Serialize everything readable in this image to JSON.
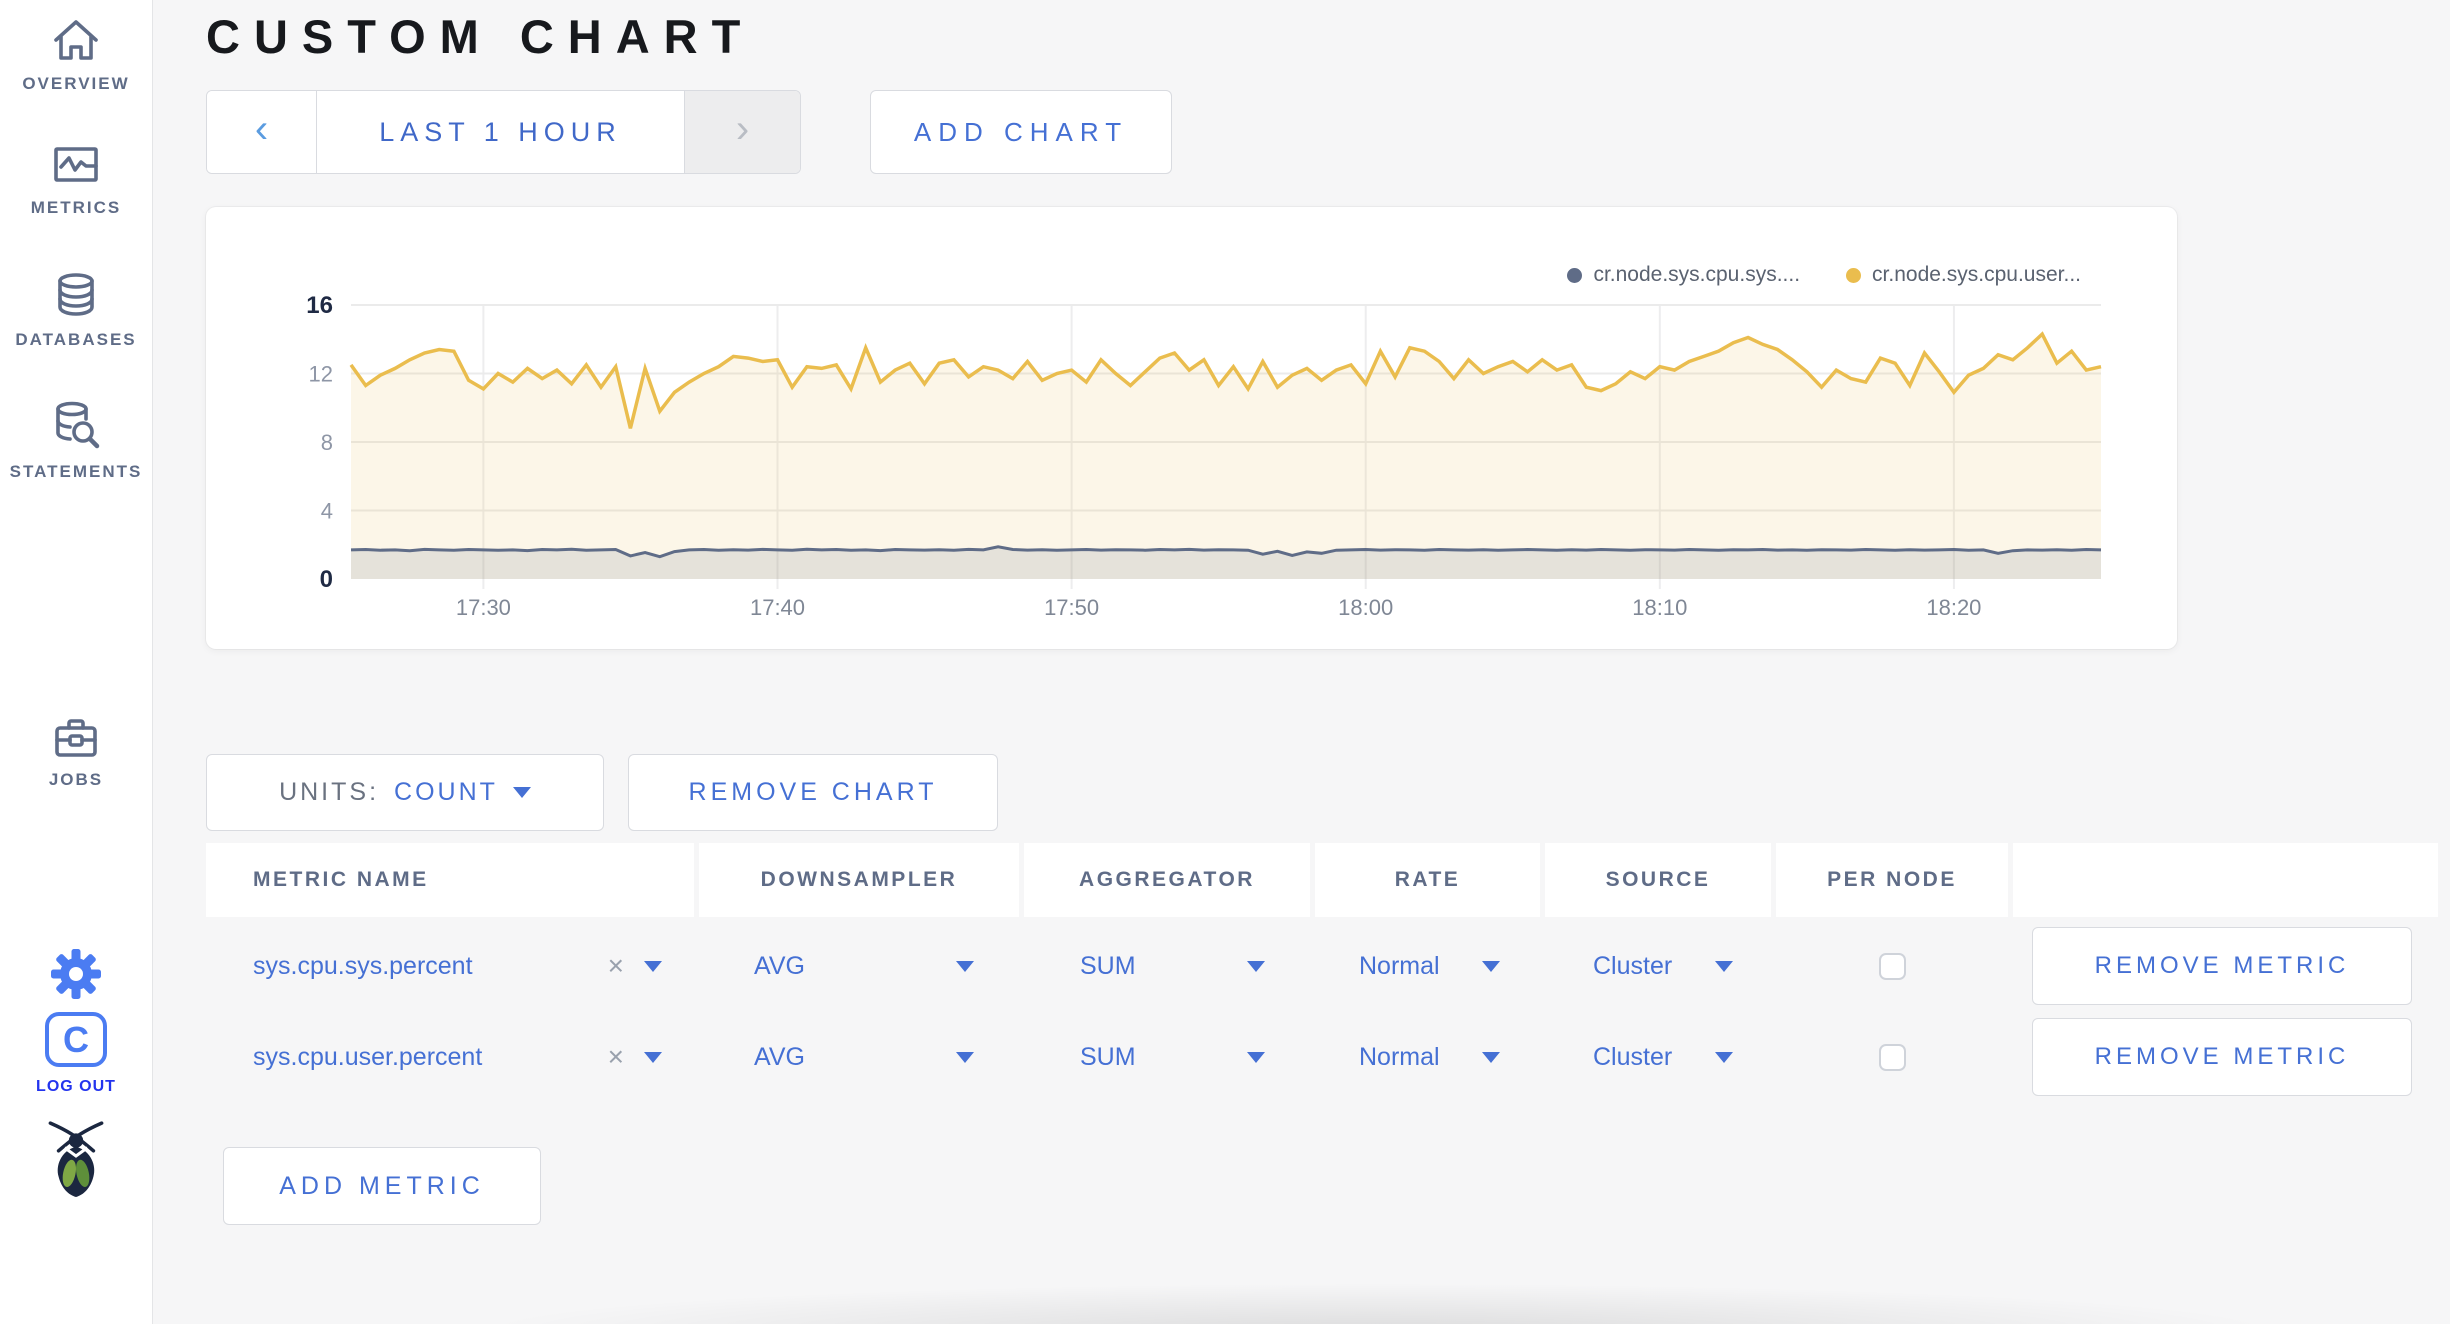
{
  "header": {
    "title": "CUSTOM CHART"
  },
  "sidebar": {
    "items": [
      {
        "label": "OVERVIEW"
      },
      {
        "label": "METRICS"
      },
      {
        "label": "DATABASES"
      },
      {
        "label": "STATEMENTS"
      },
      {
        "label": "JOBS"
      }
    ],
    "logo_letter": "C",
    "logout_label": "LOG OUT"
  },
  "time_selector": {
    "prev_glyph": "‹",
    "label": "LAST 1 HOUR",
    "next_glyph": "›"
  },
  "buttons": {
    "add_chart": "ADD CHART",
    "remove_chart": "REMOVE CHART",
    "add_metric": "ADD METRIC"
  },
  "units": {
    "label": "UNITS:",
    "value": "COUNT"
  },
  "colors": {
    "accent_blue": "#4570d4",
    "sidebar_gray": "#5f6c87",
    "logo_blue": "#4b7cf2",
    "logout_blue": "#2334ee",
    "series_yellow": "#eabd4e",
    "series_gray": "#5f6c87"
  },
  "table": {
    "headers": [
      "METRIC NAME",
      "DOWNSAMPLER",
      "AGGREGATOR",
      "RATE",
      "SOURCE",
      "PER NODE",
      ""
    ],
    "clear_glyph": "×",
    "rows": [
      {
        "metric_name": "sys.cpu.sys.percent",
        "downsampler": "AVG",
        "aggregator": "SUM",
        "rate": "Normal",
        "source": "Cluster",
        "per_node_checked": false,
        "remove_label": "REMOVE METRIC"
      },
      {
        "metric_name": "sys.cpu.user.percent",
        "downsampler": "AVG",
        "aggregator": "SUM",
        "rate": "Normal",
        "source": "Cluster",
        "per_node_checked": false,
        "remove_label": "REMOVE METRIC"
      }
    ]
  },
  "chart_data": {
    "type": "line",
    "title": "",
    "xlabel": "",
    "ylabel": "",
    "ylim": [
      0,
      16
    ],
    "yticks": [
      0,
      4,
      8,
      12,
      16
    ],
    "grid": true,
    "legend_position": "top-right",
    "xticklabels": [
      "17:30",
      "17:40",
      "17:50",
      "18:00",
      "18:10",
      "18:20"
    ],
    "xtick_indices": [
      9,
      29,
      49,
      69,
      89,
      109
    ],
    "series": [
      {
        "name": "cr.node.sys.cpu.sys....",
        "color": "#5f6c87",
        "fill": "rgba(95,108,135,0.14)",
        "values": [
          1.7,
          1.72,
          1.68,
          1.7,
          1.65,
          1.73,
          1.7,
          1.68,
          1.72,
          1.7,
          1.68,
          1.7,
          1.66,
          1.72,
          1.7,
          1.74,
          1.68,
          1.7,
          1.72,
          1.35,
          1.55,
          1.3,
          1.6,
          1.7,
          1.72,
          1.68,
          1.71,
          1.69,
          1.73,
          1.7,
          1.68,
          1.74,
          1.7,
          1.72,
          1.68,
          1.7,
          1.66,
          1.72,
          1.7,
          1.69,
          1.71,
          1.68,
          1.73,
          1.7,
          1.88,
          1.72,
          1.69,
          1.71,
          1.68,
          1.7,
          1.72,
          1.69,
          1.71,
          1.7,
          1.68,
          1.72,
          1.7,
          1.73,
          1.69,
          1.71,
          1.7,
          1.68,
          1.45,
          1.62,
          1.38,
          1.58,
          1.5,
          1.68,
          1.7,
          1.72,
          1.69,
          1.71,
          1.7,
          1.68,
          1.72,
          1.7,
          1.69,
          1.71,
          1.68,
          1.7,
          1.72,
          1.7,
          1.68,
          1.71,
          1.69,
          1.72,
          1.7,
          1.68,
          1.71,
          1.7,
          1.69,
          1.72,
          1.7,
          1.68,
          1.71,
          1.7,
          1.72,
          1.69,
          1.7,
          1.68,
          1.71,
          1.7,
          1.69,
          1.72,
          1.7,
          1.68,
          1.71,
          1.69,
          1.7,
          1.72,
          1.68,
          1.7,
          1.5,
          1.65,
          1.7,
          1.69,
          1.71,
          1.68,
          1.72,
          1.7
        ]
      },
      {
        "name": "cr.node.sys.cpu.user...",
        "color": "#eabd4e",
        "fill": "rgba(234,189,78,0.13)",
        "values": [
          12.5,
          11.3,
          11.9,
          12.3,
          12.8,
          13.2,
          13.4,
          13.3,
          11.6,
          11.1,
          12.0,
          11.5,
          12.3,
          11.7,
          12.2,
          11.4,
          12.5,
          11.2,
          12.4,
          8.8,
          12.3,
          9.8,
          10.9,
          11.5,
          12.0,
          12.4,
          13.0,
          12.9,
          12.7,
          12.8,
          11.2,
          12.4,
          12.3,
          12.5,
          11.1,
          13.5,
          11.5,
          12.2,
          12.6,
          11.4,
          12.6,
          12.8,
          11.8,
          12.4,
          12.2,
          11.7,
          12.7,
          11.6,
          12.0,
          12.2,
          11.5,
          12.8,
          12.0,
          11.3,
          12.1,
          12.9,
          13.2,
          12.2,
          12.8,
          11.3,
          12.4,
          11.1,
          12.7,
          11.2,
          11.9,
          12.3,
          11.6,
          12.2,
          12.5,
          11.4,
          13.3,
          11.8,
          13.5,
          13.3,
          12.7,
          11.7,
          12.8,
          12.0,
          12.4,
          12.7,
          12.1,
          12.8,
          12.2,
          12.5,
          11.2,
          11.0,
          11.4,
          12.1,
          11.7,
          12.4,
          12.2,
          12.7,
          13.0,
          13.3,
          13.8,
          14.1,
          13.7,
          13.4,
          12.8,
          12.1,
          11.2,
          12.2,
          11.7,
          11.5,
          12.9,
          12.6,
          11.3,
          13.2,
          12.1,
          10.9,
          11.9,
          12.3,
          13.1,
          12.8,
          13.5,
          14.3,
          12.6,
          13.3,
          12.2,
          12.4
        ]
      }
    ]
  }
}
